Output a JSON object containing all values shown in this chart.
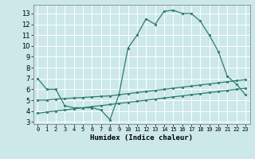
{
  "line1_x": [
    0,
    1,
    2,
    3,
    4,
    5,
    6,
    7,
    8,
    9,
    10,
    11,
    12,
    13,
    14,
    15,
    16,
    17,
    18,
    19,
    20,
    21,
    22,
    23
  ],
  "line1_y": [
    7.0,
    6.0,
    6.0,
    4.5,
    4.3,
    4.3,
    4.3,
    4.1,
    3.2,
    5.5,
    9.8,
    11.0,
    12.5,
    12.0,
    13.2,
    13.3,
    13.0,
    13.0,
    12.3,
    11.0,
    9.5,
    7.2,
    6.5,
    5.5
  ],
  "line2_x": [
    0,
    1,
    2,
    3,
    4,
    5,
    6,
    7,
    8,
    9,
    10,
    11,
    12,
    13,
    14,
    15,
    16,
    17,
    18,
    19,
    20,
    21,
    22,
    23
  ],
  "line2_y": [
    5.0,
    5.0,
    5.1,
    5.15,
    5.2,
    5.25,
    5.3,
    5.35,
    5.4,
    5.5,
    5.6,
    5.7,
    5.8,
    5.9,
    6.0,
    6.1,
    6.2,
    6.3,
    6.4,
    6.5,
    6.6,
    6.7,
    6.8,
    6.9
  ],
  "line3_x": [
    0,
    1,
    2,
    3,
    4,
    5,
    6,
    7,
    8,
    9,
    10,
    11,
    12,
    13,
    14,
    15,
    16,
    17,
    18,
    19,
    20,
    21,
    22,
    23
  ],
  "line3_y": [
    3.8,
    3.9,
    4.0,
    4.1,
    4.2,
    4.3,
    4.4,
    4.5,
    4.6,
    4.7,
    4.8,
    4.9,
    5.0,
    5.1,
    5.2,
    5.3,
    5.4,
    5.5,
    5.6,
    5.7,
    5.8,
    5.9,
    6.0,
    6.1
  ],
  "color": "#2d7d6e",
  "bg_color": "#cce8e8",
  "grid_color": "#ffffff",
  "xlabel": "Humidex (Indice chaleur)",
  "ylim": [
    2.8,
    13.8
  ],
  "xlim": [
    -0.5,
    23.5
  ],
  "yticks": [
    3,
    4,
    5,
    6,
    7,
    8,
    9,
    10,
    11,
    12,
    13
  ],
  "xticks": [
    0,
    1,
    2,
    3,
    4,
    5,
    6,
    7,
    8,
    9,
    10,
    11,
    12,
    13,
    14,
    15,
    16,
    17,
    18,
    19,
    20,
    21,
    22,
    23
  ]
}
